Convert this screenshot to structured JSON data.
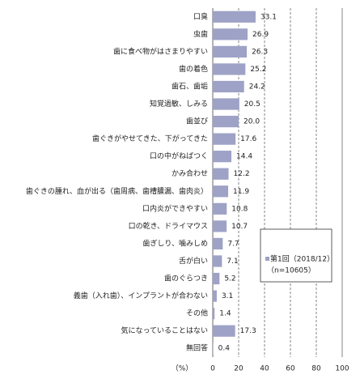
{
  "chart_data": {
    "type": "bar",
    "orientation": "horizontal",
    "categories": [
      "口臭",
      "虫歯",
      "歯に食べ物がはさまりやすい",
      "歯の着色",
      "歯石、歯垢",
      "知覚過敏、しみる",
      "歯並び",
      "歯ぐきがやせてきた、下がってきた",
      "口の中がねばつく",
      "かみ合わせ",
      "歯ぐきの腫れ、血が出る（歯周病、歯槽膿漏、歯肉炎）",
      "口内炎ができやすい",
      "口の乾き、ドライマウス",
      "歯ぎしり、噛みしめ",
      "舌が白い",
      "歯のぐらつき",
      "義歯（入れ歯）、インプラントが合わない",
      "その他",
      "気になっていることはない",
      "無回答"
    ],
    "series": [
      {
        "name": "第1回（2018/12）",
        "color": "#9ea2c6",
        "values": [
          33.1,
          26.9,
          26.3,
          25.2,
          24.2,
          20.5,
          20.0,
          17.6,
          14.4,
          12.2,
          11.9,
          10.8,
          10.7,
          7.7,
          7.1,
          5.2,
          3.1,
          1.4,
          17.3,
          0.4
        ],
        "value_labels": [
          "33.1",
          "26.9",
          "26.3",
          "25.2",
          "24.2",
          "20.5",
          "20.0",
          "17.6",
          "14.4",
          "12.2",
          "11.9",
          "10.8",
          "10.7",
          "7.7",
          "7.1",
          "5.2",
          "3.1",
          "1.4",
          "17.3",
          "0.4"
        ]
      }
    ],
    "legend_note": "（n=10605）",
    "x_unit_label": "（%）",
    "xlim": [
      0,
      100
    ],
    "xticks": [
      0,
      20,
      40,
      60,
      80,
      100
    ],
    "grid": true
  }
}
